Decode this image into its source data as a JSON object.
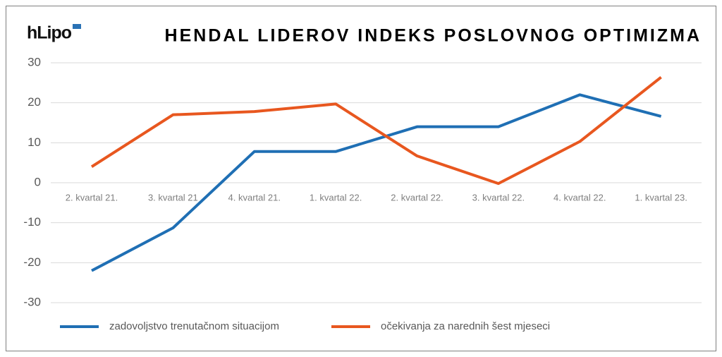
{
  "logo": "hLipo",
  "chart_data": {
    "type": "line",
    "title": "HENDAL LIDEROV INDEKS POSLOVNOG OPTIMIZMA",
    "categories": [
      "2. kvartal 21.",
      "3. kvartal 21",
      "4. kvartal 21.",
      "1. kvartal 22.",
      "2. kvartal 22.",
      "3. kvartal 22.",
      "4. kvartal 22.",
      "1. kvartal 23."
    ],
    "series": [
      {
        "name": "zadovoljstvo trenutačnom situacijom",
        "color": "#1f6fb4",
        "values": [
          -22,
          -11.3,
          7.8,
          7.8,
          14,
          14,
          22,
          16.6
        ]
      },
      {
        "name": "očekivanja za narednih šest mjeseci",
        "color": "#e8571f",
        "values": [
          4,
          17,
          17.8,
          19.7,
          6.7,
          -0.2,
          10.3,
          26.4
        ]
      }
    ],
    "ylim": [
      -30,
      30
    ],
    "yticks": [
      -30,
      -20,
      -10,
      0,
      10,
      20,
      30
    ],
    "grid": true,
    "legend": "bottom"
  }
}
